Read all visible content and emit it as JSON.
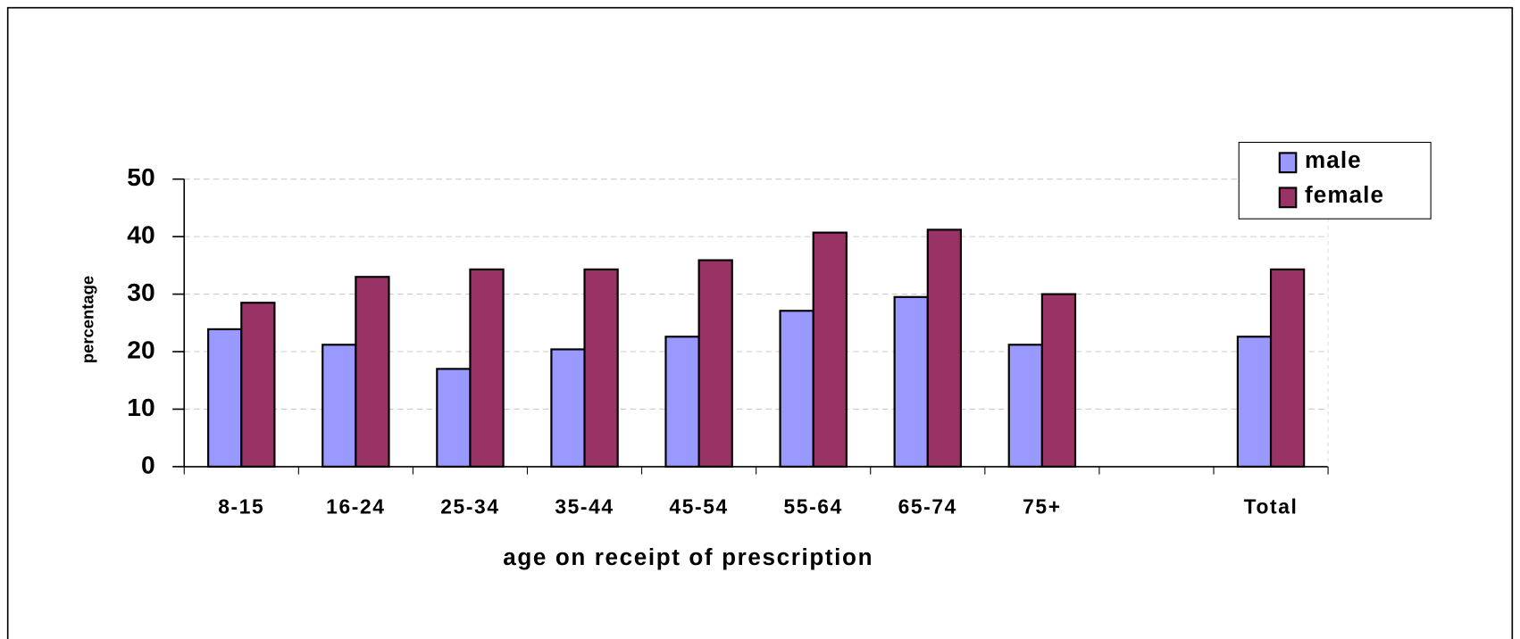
{
  "chart_data": {
    "type": "bar",
    "x_label": "age on receipt of prescription",
    "y_label": "percentage",
    "categories": [
      "8-15",
      "16-24",
      "25-34",
      "35-44",
      "45-54",
      "55-64",
      "65-74",
      "75+",
      null,
      "Total"
    ],
    "series": [
      {
        "name": "male",
        "color": "#9999ff",
        "values": [
          23.9,
          21.2,
          17.0,
          20.4,
          22.6,
          27.1,
          29.5,
          21.2,
          null,
          22.6
        ]
      },
      {
        "name": "female",
        "color": "#993366",
        "values": [
          28.5,
          33.0,
          34.3,
          34.3,
          35.9,
          40.7,
          41.2,
          30.0,
          null,
          34.3
        ]
      }
    ],
    "ylim": [
      0,
      50
    ],
    "yticks": [
      0,
      10,
      20,
      30,
      40,
      50
    ],
    "grid": true,
    "legend": "upper right"
  }
}
